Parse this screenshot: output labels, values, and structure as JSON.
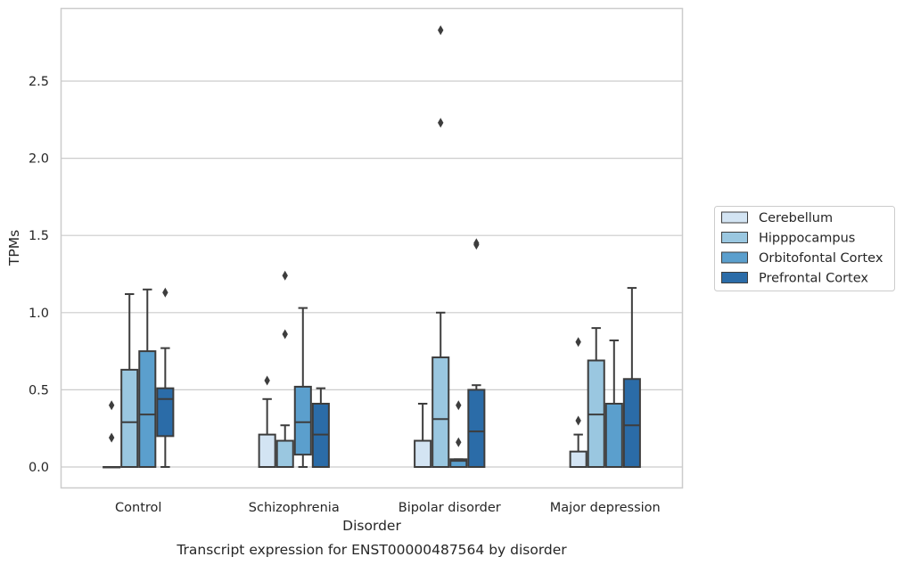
{
  "caption": "Transcript expression for ENST00000487564 by disorder",
  "chart_data": {
    "type": "boxplot",
    "xlabel": "Disorder",
    "ylabel": "TPMs",
    "ylim": [
      -0.14,
      2.97
    ],
    "yticks": [
      0.0,
      0.5,
      1.0,
      1.5,
      2.0,
      2.5
    ],
    "ytick_labels": [
      "0.0",
      "0.5",
      "1.0",
      "1.5",
      "2.0",
      "2.5"
    ],
    "grid": "horizontal",
    "legend_position": "right",
    "categories": [
      "Control",
      "Schizophrenia",
      "Bipolar disorder",
      "Major depression"
    ],
    "series": [
      {
        "name": "Cerebellum",
        "color": "#d3e4f3",
        "boxes": [
          {
            "whislo": 0.0,
            "q1": 0.0,
            "med": 0.0,
            "q3": 0.0,
            "whishi": 0.0,
            "fliers": [
              0.19,
              0.4
            ]
          },
          {
            "whislo": 0.0,
            "q1": 0.0,
            "med": 0.0,
            "q3": 0.21,
            "whishi": 0.44,
            "fliers": [
              0.56
            ]
          },
          {
            "whislo": 0.0,
            "q1": 0.0,
            "med": 0.0,
            "q3": 0.17,
            "whishi": 0.41,
            "fliers": []
          },
          {
            "whislo": 0.0,
            "q1": 0.0,
            "med": 0.0,
            "q3": 0.1,
            "whishi": 0.21,
            "fliers": [
              0.3,
              0.81
            ]
          }
        ]
      },
      {
        "name": "Hipppocampus",
        "color": "#9ac7e0",
        "boxes": [
          {
            "whislo": 0.0,
            "q1": 0.0,
            "med": 0.29,
            "q3": 0.63,
            "whishi": 1.12,
            "fliers": []
          },
          {
            "whislo": 0.0,
            "q1": 0.0,
            "med": 0.0,
            "q3": 0.17,
            "whishi": 0.27,
            "fliers": [
              0.86,
              1.24
            ]
          },
          {
            "whislo": 0.0,
            "q1": 0.0,
            "med": 0.31,
            "q3": 0.71,
            "whishi": 1.0,
            "fliers": [
              2.23,
              2.83
            ]
          },
          {
            "whislo": 0.0,
            "q1": 0.0,
            "med": 0.34,
            "q3": 0.69,
            "whishi": 0.9,
            "fliers": []
          }
        ]
      },
      {
        "name": "Orbitofontal Cortex",
        "color": "#5b9fcd",
        "boxes": [
          {
            "whislo": 0.0,
            "q1": 0.0,
            "med": 0.34,
            "q3": 0.75,
            "whishi": 1.15,
            "fliers": []
          },
          {
            "whislo": 0.0,
            "q1": 0.08,
            "med": 0.29,
            "q3": 0.52,
            "whishi": 1.03,
            "fliers": []
          },
          {
            "whislo": 0.0,
            "q1": 0.0,
            "med": 0.04,
            "q3": 0.05,
            "whishi": 0.05,
            "fliers": [
              0.16,
              0.4
            ]
          },
          {
            "whislo": 0.0,
            "q1": 0.0,
            "med": 0.0,
            "q3": 0.41,
            "whishi": 0.82,
            "fliers": []
          }
        ]
      },
      {
        "name": "Prefrontal Cortex",
        "color": "#2b6ca8",
        "boxes": [
          {
            "whislo": 0.0,
            "q1": 0.2,
            "med": 0.44,
            "q3": 0.51,
            "whishi": 0.77,
            "fliers": [
              1.13
            ]
          },
          {
            "whislo": 0.0,
            "q1": 0.0,
            "med": 0.21,
            "q3": 0.41,
            "whishi": 0.51,
            "fliers": []
          },
          {
            "whislo": 0.0,
            "q1": 0.0,
            "med": 0.23,
            "q3": 0.5,
            "whishi": 0.53,
            "fliers": [
              1.44,
              1.45
            ]
          },
          {
            "whislo": 0.0,
            "q1": 0.0,
            "med": 0.27,
            "q3": 0.57,
            "whishi": 1.16,
            "fliers": []
          }
        ]
      }
    ]
  }
}
